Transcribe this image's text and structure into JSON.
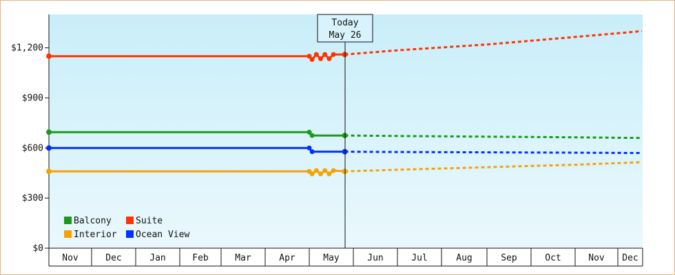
{
  "chart_data": {
    "type": "line",
    "y_axis": {
      "ticks": [
        "$0",
        "$300",
        "$600",
        "$900",
        "$1,200"
      ],
      "tick_values": [
        0,
        300,
        600,
        900,
        1200
      ],
      "ylim": [
        0,
        1400
      ]
    },
    "x_axis": {
      "months": [
        "Nov",
        "Dec",
        "Jan",
        "Feb",
        "Mar",
        "Apr",
        "May",
        "Jun",
        "Jul",
        "Aug",
        "Sep",
        "Oct",
        "Nov",
        "Dec"
      ]
    },
    "today": {
      "line1": "Today",
      "line2": "May 26",
      "date": "2025-05-26"
    },
    "legend": [
      {
        "label": "Balcony",
        "color": "#1a9a1a"
      },
      {
        "label": "Suite",
        "color": "#ff3300"
      },
      {
        "label": "Interior",
        "color": "#f5a300"
      },
      {
        "label": "Ocean View",
        "color": "#0033ff"
      }
    ],
    "series": [
      {
        "name": "Suite",
        "color": "#ff3300",
        "historical": [
          {
            "x": "2024-11-01",
            "y": 1150
          },
          {
            "x": "2025-05-01",
            "y": 1150
          },
          {
            "x": "2025-05-03",
            "y": 1130
          },
          {
            "x": "2025-05-06",
            "y": 1160
          },
          {
            "x": "2025-05-09",
            "y": 1135
          },
          {
            "x": "2025-05-12",
            "y": 1160
          },
          {
            "x": "2025-05-15",
            "y": 1135
          },
          {
            "x": "2025-05-18",
            "y": 1160
          },
          {
            "x": "2025-05-26",
            "y": 1160
          }
        ],
        "forecast": [
          {
            "x": "2025-05-26",
            "y": 1160
          },
          {
            "x": "2025-07-01",
            "y": 1185
          },
          {
            "x": "2025-09-01",
            "y": 1220
          },
          {
            "x": "2025-11-01",
            "y": 1265
          },
          {
            "x": "2025-12-31",
            "y": 1300
          }
        ]
      },
      {
        "name": "Balcony",
        "color": "#1a9a1a",
        "historical": [
          {
            "x": "2024-11-01",
            "y": 695
          },
          {
            "x": "2025-05-01",
            "y": 695
          },
          {
            "x": "2025-05-03",
            "y": 675
          },
          {
            "x": "2025-05-26",
            "y": 675
          }
        ],
        "forecast": [
          {
            "x": "2025-05-26",
            "y": 675
          },
          {
            "x": "2025-07-01",
            "y": 672
          },
          {
            "x": "2025-09-01",
            "y": 668
          },
          {
            "x": "2025-11-01",
            "y": 664
          },
          {
            "x": "2025-12-31",
            "y": 660
          }
        ]
      },
      {
        "name": "Ocean View",
        "color": "#0033ff",
        "historical": [
          {
            "x": "2024-11-01",
            "y": 600
          },
          {
            "x": "2025-05-01",
            "y": 600
          },
          {
            "x": "2025-05-03",
            "y": 578
          },
          {
            "x": "2025-05-26",
            "y": 578
          }
        ],
        "forecast": [
          {
            "x": "2025-05-26",
            "y": 578
          },
          {
            "x": "2025-07-01",
            "y": 576
          },
          {
            "x": "2025-09-01",
            "y": 574
          },
          {
            "x": "2025-11-01",
            "y": 572
          },
          {
            "x": "2025-12-31",
            "y": 570
          }
        ]
      },
      {
        "name": "Interior",
        "color": "#f5a300",
        "historical": [
          {
            "x": "2024-11-01",
            "y": 460
          },
          {
            "x": "2025-05-01",
            "y": 460
          },
          {
            "x": "2025-05-03",
            "y": 445
          },
          {
            "x": "2025-05-06",
            "y": 465
          },
          {
            "x": "2025-05-09",
            "y": 445
          },
          {
            "x": "2025-05-12",
            "y": 465
          },
          {
            "x": "2025-05-15",
            "y": 445
          },
          {
            "x": "2025-05-18",
            "y": 465
          },
          {
            "x": "2025-05-26",
            "y": 460
          }
        ],
        "forecast": [
          {
            "x": "2025-05-26",
            "y": 460
          },
          {
            "x": "2025-07-01",
            "y": 470
          },
          {
            "x": "2025-09-01",
            "y": 485
          },
          {
            "x": "2025-11-01",
            "y": 500
          },
          {
            "x": "2025-12-31",
            "y": 515
          }
        ]
      }
    ]
  }
}
